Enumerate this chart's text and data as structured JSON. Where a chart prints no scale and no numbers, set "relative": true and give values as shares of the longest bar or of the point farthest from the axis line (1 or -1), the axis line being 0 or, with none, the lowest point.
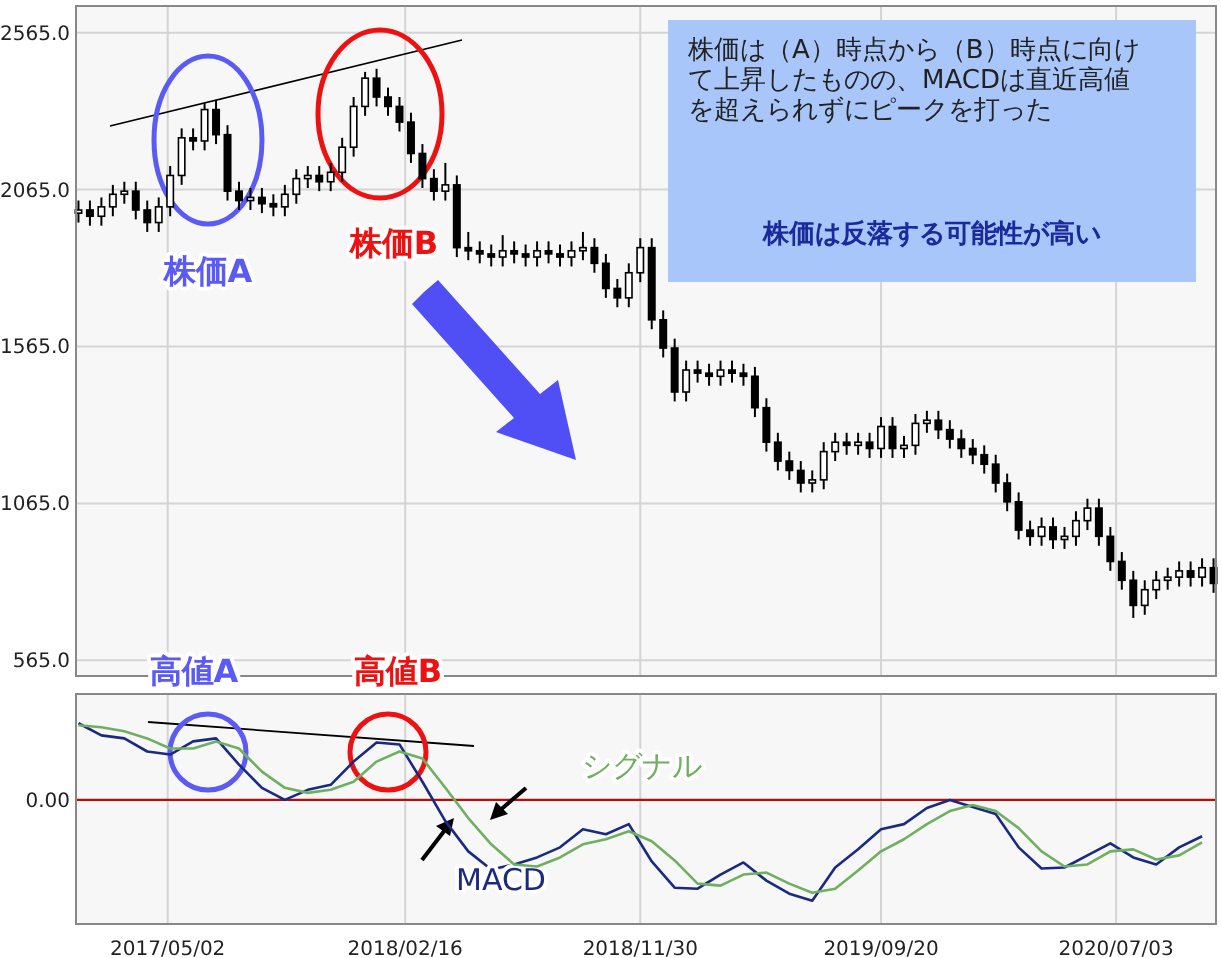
{
  "chart_data": [
    {
      "type": "candlestick",
      "x": [
        "2017-01-13",
        "2017-01-27",
        "2017-02-10",
        "2017-02-24",
        "2017-03-10",
        "2017-03-24",
        "2017-04-07",
        "2017-04-21",
        "2017-05-05",
        "2017-05-19",
        "2017-06-02",
        "2017-06-16",
        "2017-06-30",
        "2017-07-14",
        "2017-07-28",
        "2017-08-11",
        "2017-08-25",
        "2017-09-08",
        "2017-09-22",
        "2017-10-06",
        "2017-10-20",
        "2017-11-03",
        "2017-11-17",
        "2017-12-01",
        "2017-12-15",
        "2017-12-29",
        "2018-01-12",
        "2018-01-26",
        "2018-02-09",
        "2018-02-23",
        "2018-03-09",
        "2018-03-23",
        "2018-04-06",
        "2018-04-20",
        "2018-05-04",
        "2018-05-18",
        "2018-06-01",
        "2018-06-15",
        "2018-06-29",
        "2018-07-13",
        "2018-07-27",
        "2018-08-10",
        "2018-08-24",
        "2018-09-07",
        "2018-09-21",
        "2018-10-05",
        "2018-10-19",
        "2018-11-02",
        "2018-11-16",
        "2018-11-30",
        "2018-12-14",
        "2018-12-28",
        "2019-01-11",
        "2019-01-25",
        "2019-02-08",
        "2019-02-22",
        "2019-03-08",
        "2019-03-22",
        "2019-04-05",
        "2019-04-19",
        "2019-05-03",
        "2019-05-17",
        "2019-05-31",
        "2019-06-14",
        "2019-06-28",
        "2019-07-12",
        "2019-07-26",
        "2019-08-09",
        "2019-08-23",
        "2019-09-06",
        "2019-09-20",
        "2019-10-04",
        "2019-10-18",
        "2019-11-01",
        "2019-11-15",
        "2019-11-29",
        "2019-12-13",
        "2019-12-27",
        "2020-01-10",
        "2020-01-24",
        "2020-02-07",
        "2020-02-21",
        "2020-03-06",
        "2020-03-20",
        "2020-04-03",
        "2020-04-17",
        "2020-05-01",
        "2020-05-15",
        "2020-05-29",
        "2020-06-12",
        "2020-06-26",
        "2020-07-10",
        "2020-07-24",
        "2020-08-07",
        "2020-08-21",
        "2020-09-04",
        "2020-09-18",
        "2020-10-02",
        "2020-10-16",
        "2020-10-30"
      ],
      "ohlc": [
        [
          1990,
          2030,
          1960,
          2000
        ],
        [
          2000,
          2030,
          1950,
          1980
        ],
        [
          1980,
          2040,
          1950,
          2010
        ],
        [
          2010,
          2080,
          1980,
          2050
        ],
        [
          2050,
          2090,
          2020,
          2060
        ],
        [
          2060,
          2090,
          1970,
          2000
        ],
        [
          2000,
          2030,
          1930,
          1960
        ],
        [
          1960,
          2040,
          1930,
          2010
        ],
        [
          2010,
          2140,
          1980,
          2110
        ],
        [
          2110,
          2260,
          2080,
          2230
        ],
        [
          2230,
          2260,
          2190,
          2220
        ],
        [
          2220,
          2340,
          2190,
          2320
        ],
        [
          2320,
          2350,
          2210,
          2240
        ],
        [
          2240,
          2270,
          2030,
          2060
        ],
        [
          2060,
          2090,
          2000,
          2030
        ],
        [
          2030,
          2070,
          2000,
          2040
        ],
        [
          2040,
          2070,
          1990,
          2020
        ],
        [
          2020,
          2050,
          1980,
          2010
        ],
        [
          2010,
          2080,
          1980,
          2050
        ],
        [
          2050,
          2130,
          2020,
          2100
        ],
        [
          2100,
          2140,
          2070,
          2110
        ],
        [
          2110,
          2140,
          2060,
          2090
        ],
        [
          2090,
          2150,
          2060,
          2120
        ],
        [
          2120,
          2230,
          2090,
          2200
        ],
        [
          2200,
          2360,
          2170,
          2330
        ],
        [
          2330,
          2440,
          2300,
          2420
        ],
        [
          2420,
          2450,
          2330,
          2360
        ],
        [
          2360,
          2390,
          2300,
          2330
        ],
        [
          2330,
          2360,
          2250,
          2280
        ],
        [
          2280,
          2310,
          2150,
          2180
        ],
        [
          2180,
          2210,
          2070,
          2100
        ],
        [
          2100,
          2130,
          2030,
          2060
        ],
        [
          2060,
          2150,
          2030,
          2080
        ],
        [
          2080,
          2110,
          1850,
          1880
        ],
        [
          1880,
          1930,
          1840,
          1870
        ],
        [
          1870,
          1900,
          1830,
          1860
        ],
        [
          1860,
          1890,
          1820,
          1850
        ],
        [
          1850,
          1920,
          1820,
          1870
        ],
        [
          1870,
          1900,
          1830,
          1860
        ],
        [
          1860,
          1890,
          1820,
          1850
        ],
        [
          1850,
          1900,
          1820,
          1870
        ],
        [
          1870,
          1900,
          1830,
          1860
        ],
        [
          1860,
          1890,
          1820,
          1850
        ],
        [
          1850,
          1900,
          1820,
          1870
        ],
        [
          1870,
          1930,
          1840,
          1880
        ],
        [
          1880,
          1910,
          1800,
          1830
        ],
        [
          1830,
          1860,
          1720,
          1750
        ],
        [
          1750,
          1780,
          1690,
          1720
        ],
        [
          1720,
          1830,
          1690,
          1800
        ],
        [
          1800,
          1910,
          1770,
          1880
        ],
        [
          1880,
          1910,
          1620,
          1650
        ],
        [
          1650,
          1680,
          1530,
          1560
        ],
        [
          1560,
          1590,
          1390,
          1420
        ],
        [
          1420,
          1520,
          1390,
          1490
        ],
        [
          1490,
          1520,
          1450,
          1480
        ],
        [
          1480,
          1510,
          1440,
          1470
        ],
        [
          1470,
          1520,
          1440,
          1490
        ],
        [
          1490,
          1520,
          1450,
          1480
        ],
        [
          1480,
          1510,
          1440,
          1470
        ],
        [
          1470,
          1500,
          1340,
          1370
        ],
        [
          1370,
          1400,
          1230,
          1260
        ],
        [
          1260,
          1290,
          1170,
          1200
        ],
        [
          1200,
          1230,
          1140,
          1170
        ],
        [
          1170,
          1200,
          1100,
          1130
        ],
        [
          1130,
          1170,
          1100,
          1140
        ],
        [
          1140,
          1260,
          1110,
          1230
        ],
        [
          1230,
          1290,
          1200,
          1260
        ],
        [
          1260,
          1290,
          1220,
          1250
        ],
        [
          1250,
          1290,
          1220,
          1260
        ],
        [
          1260,
          1290,
          1210,
          1240
        ],
        [
          1240,
          1340,
          1210,
          1310
        ],
        [
          1310,
          1340,
          1210,
          1240
        ],
        [
          1240,
          1280,
          1210,
          1250
        ],
        [
          1250,
          1350,
          1220,
          1320
        ],
        [
          1320,
          1360,
          1290,
          1330
        ],
        [
          1330,
          1360,
          1270,
          1300
        ],
        [
          1300,
          1330,
          1240,
          1270
        ],
        [
          1270,
          1300,
          1210,
          1240
        ],
        [
          1240,
          1270,
          1190,
          1220
        ],
        [
          1220,
          1250,
          1160,
          1190
        ],
        [
          1190,
          1220,
          1100,
          1130
        ],
        [
          1130,
          1160,
          1040,
          1070
        ],
        [
          1070,
          1100,
          950,
          980
        ],
        [
          980,
          1010,
          930,
          960
        ],
        [
          960,
          1020,
          930,
          990
        ],
        [
          990,
          1020,
          920,
          950
        ],
        [
          950,
          990,
          920,
          960
        ],
        [
          960,
          1040,
          930,
          1010
        ],
        [
          1010,
          1080,
          980,
          1050
        ],
        [
          1050,
          1080,
          930,
          960
        ],
        [
          960,
          990,
          850,
          880
        ],
        [
          880,
          910,
          790,
          820
        ],
        [
          820,
          850,
          700,
          740
        ],
        [
          740,
          820,
          710,
          790
        ],
        [
          790,
          850,
          760,
          820
        ],
        [
          820,
          860,
          790,
          830
        ],
        [
          830,
          880,
          800,
          850
        ],
        [
          850,
          880,
          800,
          830
        ],
        [
          830,
          890,
          800,
          860
        ],
        [
          860,
          890,
          780,
          810
        ]
      ],
      "xlim": [
        "2017-01-10",
        "2020-11-02"
      ],
      "xticks": [
        {
          "value": "2017-05-02",
          "label": null
        },
        {
          "value": "2018-02-16",
          "label": null
        },
        {
          "value": "2018-11-30",
          "label": null
        },
        {
          "value": "2019-09-20",
          "label": null
        },
        {
          "value": "2020-07-03",
          "label": null
        }
      ],
      "ylim": [
        515,
        2650
      ],
      "yticks": [
        {
          "value": 565,
          "label": "565.0"
        },
        {
          "value": 1065,
          "label": "1065.0"
        },
        {
          "value": 1565,
          "label": "1565.0"
        },
        {
          "value": 2065,
          "label": "2065.0"
        },
        {
          "value": 2565,
          "label": "2565.0"
        }
      ],
      "grid": true,
      "tick_labels": "y",
      "annotations": [
        "株価A",
        "株価B",
        "株価は（A）時点から（B）時点に向けて上昇したものの、MACDは直近高値を超えられずにピークを打った",
        "株価は反落する可能性が高い"
      ]
    },
    {
      "type": "line",
      "relative": true,
      "x": [
        "2017-01-13",
        "2017-02-10",
        "2017-03-10",
        "2017-04-07",
        "2017-05-05",
        "2017-06-02",
        "2017-06-30",
        "2017-07-28",
        "2017-08-25",
        "2017-09-22",
        "2017-10-20",
        "2017-11-17",
        "2017-12-15",
        "2018-01-12",
        "2018-02-09",
        "2018-03-09",
        "2018-04-06",
        "2018-05-04",
        "2018-06-01",
        "2018-06-29",
        "2018-07-27",
        "2018-08-24",
        "2018-09-21",
        "2018-10-19",
        "2018-11-16",
        "2018-12-14",
        "2019-01-11",
        "2019-02-08",
        "2019-03-08",
        "2019-04-05",
        "2019-05-03",
        "2019-05-31",
        "2019-06-28",
        "2019-07-26",
        "2019-08-23",
        "2019-09-20",
        "2019-10-18",
        "2019-11-15",
        "2019-12-13",
        "2020-01-10",
        "2020-02-07",
        "2020-03-06",
        "2020-04-03",
        "2020-05-01",
        "2020-05-29",
        "2020-06-26",
        "2020-07-24",
        "2020-08-21",
        "2020-09-18",
        "2020-10-16"
      ],
      "series": [
        {
          "name": "MACD",
          "color": "#1a2a80",
          "values": [
            0.76,
            0.64,
            0.61,
            0.48,
            0.45,
            0.58,
            0.61,
            0.35,
            0.12,
            0,
            0.1,
            0.15,
            0.38,
            0.57,
            0.55,
            0.18,
            -0.21,
            -0.51,
            -0.69,
            -0.64,
            -0.57,
            -0.47,
            -0.29,
            -0.34,
            -0.24,
            -0.61,
            -0.87,
            -0.88,
            -0.74,
            -0.62,
            -0.8,
            -0.93,
            -1,
            -0.67,
            -0.49,
            -0.29,
            -0.24,
            -0.08,
            0,
            -0.07,
            -0.14,
            -0.47,
            -0.68,
            -0.67,
            -0.55,
            -0.43,
            -0.57,
            -0.64,
            -0.47,
            -0.36
          ]
        },
        {
          "name": "シグナル",
          "color": "#6fb060",
          "values": [
            0.74,
            0.72,
            0.68,
            0.61,
            0.51,
            0.51,
            0.58,
            0.51,
            0.28,
            0.12,
            0.07,
            0.1,
            0.18,
            0.38,
            0.48,
            0.41,
            0.12,
            -0.18,
            -0.44,
            -0.64,
            -0.66,
            -0.57,
            -0.44,
            -0.39,
            -0.31,
            -0.41,
            -0.6,
            -0.83,
            -0.85,
            -0.74,
            -0.72,
            -0.83,
            -0.92,
            -0.88,
            -0.7,
            -0.51,
            -0.39,
            -0.24,
            -0.11,
            -0.05,
            -0.11,
            -0.28,
            -0.51,
            -0.66,
            -0.64,
            -0.51,
            -0.49,
            -0.59,
            -0.55,
            -0.42
          ]
        }
      ],
      "xlim": [
        "2017-01-10",
        "2020-11-02"
      ],
      "xticks": [
        {
          "value": "2017-05-02",
          "label": "2017/05/02"
        },
        {
          "value": "2018-02-16",
          "label": "2018/02/16"
        },
        {
          "value": "2018-11-30",
          "label": "2018/11/30"
        },
        {
          "value": "2019-09-20",
          "label": "2019/09/20"
        },
        {
          "value": "2020-07-03",
          "label": "2020/07/03"
        }
      ],
      "grid": "x",
      "tick_labels": "x",
      "ref_lines": [
        {
          "axis": "y",
          "value": 0,
          "label": "0.00",
          "color": "#b01010"
        }
      ],
      "annotations": [
        "高値A",
        "高値B"
      ]
    }
  ]
}
